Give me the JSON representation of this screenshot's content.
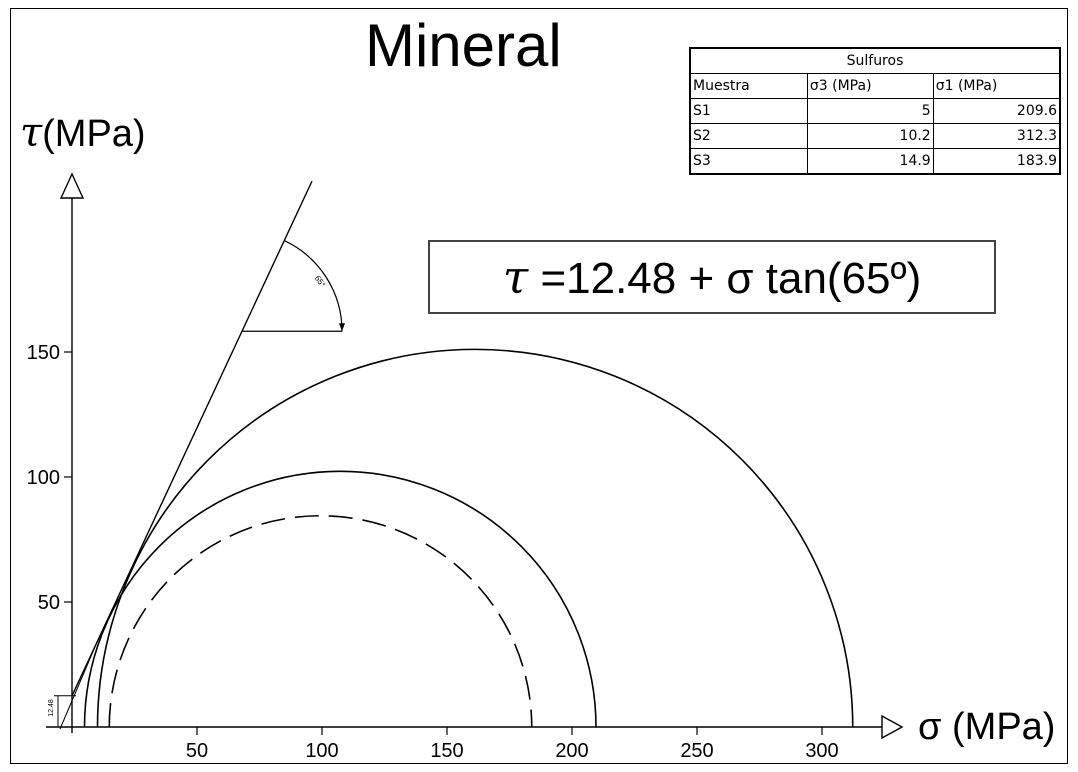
{
  "page_title": "Mineral",
  "y_axis_label": "(MPa)",
  "y_axis_symbol": "τ",
  "x_axis_label": "σ (MPa)",
  "equation": {
    "symbol": "τ",
    "text": "=12.48 + σ tan(65º)"
  },
  "table": {
    "caption": "Sulfuros",
    "headers": [
      "Muestra",
      "σ3 (MPa)",
      "σ1 (MPa)"
    ],
    "rows": [
      [
        "S1",
        "5",
        "209.6"
      ],
      [
        "S2",
        "10.2",
        "312.3"
      ],
      [
        "S3",
        "14.9",
        "183.9"
      ]
    ]
  },
  "annotations": {
    "cohesion_label": "12.48",
    "angle_label": "65°"
  },
  "chart_data": {
    "type": "mohr-circles",
    "title": "Mineral",
    "xlabel": "σ (MPa)",
    "ylabel": "τ (MPa)",
    "x_ticks": [
      50,
      100,
      150,
      200,
      250,
      300
    ],
    "y_ticks": [
      50,
      100,
      150
    ],
    "xlim": [
      0,
      320
    ],
    "ylim": [
      0,
      190
    ],
    "envelope": {
      "cohesion": 12.48,
      "friction_angle_deg": 65
    },
    "circles": [
      {
        "sample": "S1",
        "sigma3": 5,
        "sigma1": 209.6,
        "style": "solid"
      },
      {
        "sample": "S2",
        "sigma3": 10.2,
        "sigma1": 312.3,
        "style": "solid"
      },
      {
        "sample": "S3",
        "sigma3": 14.9,
        "sigma1": 183.9,
        "style": "dashed"
      }
    ],
    "grid": false,
    "legend": "none"
  }
}
